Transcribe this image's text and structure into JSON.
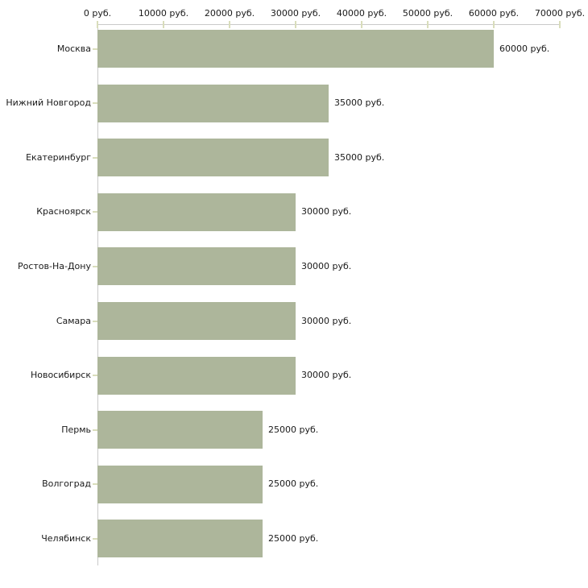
{
  "chart_data": {
    "type": "bar",
    "orientation": "horizontal",
    "title": "",
    "xlabel": "",
    "ylabel": "",
    "unit": "руб.",
    "categories": [
      "Москва",
      "Нижний Новгород",
      "Екатеринбург",
      "Красноярск",
      "Ростов-На-Дону",
      "Самара",
      "Новосибирск",
      "Пермь",
      "Волгоград",
      "Челябинск"
    ],
    "values": [
      60000,
      35000,
      35000,
      30000,
      30000,
      30000,
      30000,
      25000,
      25000,
      25000
    ],
    "value_labels": [
      "60000 руб.",
      "35000 руб.",
      "35000 руб.",
      "30000 руб.",
      "30000 руб.",
      "30000 руб.",
      "30000 руб.",
      "25000 руб.",
      "25000 руб.",
      "25000 руб."
    ],
    "x_ticks": [
      0,
      10000,
      20000,
      30000,
      40000,
      50000,
      60000,
      70000
    ],
    "x_tick_labels": [
      "0 руб.",
      "10000 руб.",
      "20000 руб.",
      "30000 руб.",
      "40000 руб.",
      "50000 руб.",
      "60000 руб.",
      "70000 руб."
    ],
    "xlim": [
      0,
      70000
    ],
    "grid": false,
    "legend_position": "none",
    "colors": {
      "bar": "#adb69b",
      "axis_line": "#c9c9c9",
      "tick_mark": "#d9ddbb",
      "text": "#1a1a1a",
      "background": "#ffffff"
    }
  }
}
